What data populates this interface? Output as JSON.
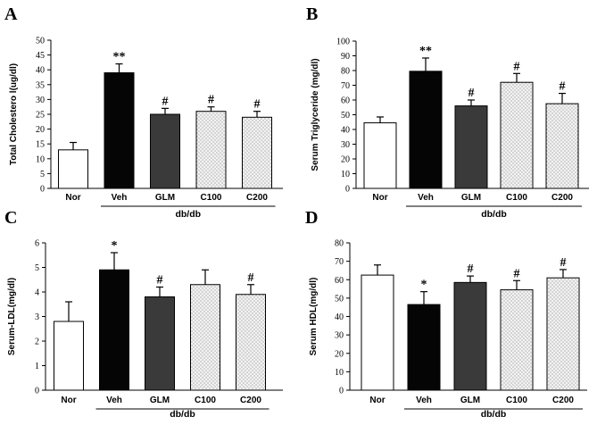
{
  "chart_data": [
    {
      "panel": "A",
      "type": "bar",
      "ylabel": "Total Cholestero l(ug/dl)",
      "ylim": [
        0,
        50
      ],
      "ytick_step": 5,
      "categories": [
        "Nor",
        "Veh",
        "GLM",
        "C100",
        "C200"
      ],
      "group_label": "db/db",
      "values": [
        13,
        39,
        25,
        26,
        24
      ],
      "errors": [
        2.5,
        3,
        2,
        1.5,
        2
      ],
      "significance": [
        "",
        "**",
        "#",
        "#",
        "#"
      ],
      "fills": [
        "white",
        "black",
        "darkgray",
        "dotted",
        "dotted"
      ]
    },
    {
      "panel": "B",
      "type": "bar",
      "ylabel": "Serum Triglyceride (mg/dl)",
      "ylim": [
        0,
        100
      ],
      "ytick_step": 10,
      "categories": [
        "Nor",
        "Veh",
        "GLM",
        "C100",
        "C200"
      ],
      "group_label": "db/db",
      "values": [
        44.5,
        79.5,
        56,
        72,
        57.5
      ],
      "errors": [
        4,
        9,
        4,
        6,
        7
      ],
      "significance": [
        "",
        "**",
        "#",
        "#",
        "#"
      ],
      "fills": [
        "white",
        "black",
        "darkgray",
        "dotted",
        "dotted"
      ]
    },
    {
      "panel": "C",
      "type": "bar",
      "ylabel": "Serum-LDL(mg/dl)",
      "ylim": [
        0,
        6
      ],
      "ytick_step": 1,
      "categories": [
        "Nor",
        "Veh",
        "GLM",
        "C100",
        "C200"
      ],
      "group_label": "db/db",
      "values": [
        2.8,
        4.9,
        3.8,
        4.3,
        3.9
      ],
      "errors": [
        0.8,
        0.7,
        0.4,
        0.6,
        0.4
      ],
      "significance": [
        "",
        "*",
        "#",
        "",
        "#"
      ],
      "fills": [
        "white",
        "black",
        "darkgray",
        "dotted",
        "dotted"
      ]
    },
    {
      "panel": "D",
      "type": "bar",
      "ylabel": "Serum HDL(mg/dl)",
      "ylim": [
        0,
        80
      ],
      "ytick_step": 10,
      "categories": [
        "Nor",
        "Veh",
        "GLM",
        "C100",
        "C200"
      ],
      "group_label": "db/db",
      "values": [
        62.5,
        46.5,
        58.5,
        54.5,
        61
      ],
      "errors": [
        5.5,
        7,
        3.5,
        5,
        4.5
      ],
      "significance": [
        "",
        "*",
        "#",
        "#",
        "#"
      ],
      "fills": [
        "white",
        "black",
        "darkgray",
        "dotted",
        "dotted"
      ]
    }
  ],
  "colors": {
    "white": "#ffffff",
    "black": "#050505",
    "darkgray": "#3a3a3a",
    "dotted_bg": "#f2f2f2",
    "dotted_dot": "#8a8a8a",
    "axis": "#000000"
  }
}
